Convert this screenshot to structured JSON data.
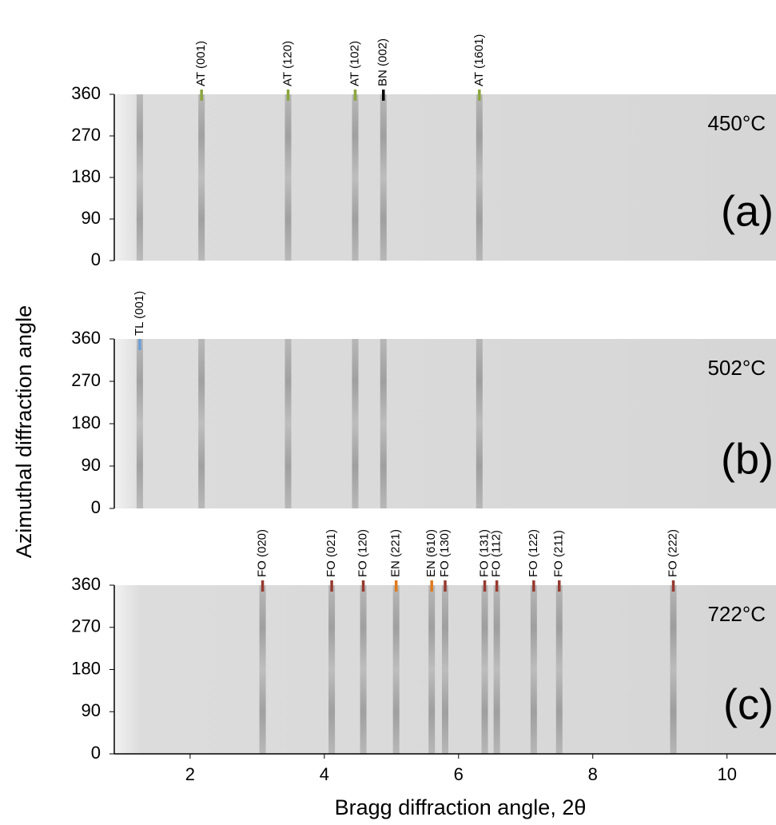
{
  "chart_data": {
    "type": "diffraction",
    "x_label": "Bragg diffraction angle, 2θ",
    "y_label": "Azimuthal diffraction angle",
    "xlim": [
      0.87,
      10.73
    ],
    "xticks": [
      2,
      4,
      6,
      8,
      10
    ],
    "ylim": [
      0,
      360
    ],
    "yticks": [
      0,
      90,
      180,
      270,
      360
    ],
    "panels": [
      {
        "label": "(a)",
        "temperature": "450°C",
        "peaks": [
          {
            "label": "AT (001)",
            "x": 2.17,
            "color": "#8aa63c"
          },
          {
            "label": "AT (120)",
            "x": 3.46,
            "color": "#8aa63c"
          },
          {
            "label": "AT (102)",
            "x": 4.46,
            "color": "#8aa63c"
          },
          {
            "label": "BN (002)",
            "x": 4.88,
            "color": "#000000"
          },
          {
            "label": "AT (1601)",
            "x": 6.31,
            "color": "#8aa63c"
          }
        ]
      },
      {
        "label": "(b)",
        "temperature": "502°C",
        "peaks": [
          {
            "label": "TL (001)",
            "x": 1.25,
            "color": "#6a9fd8"
          }
        ]
      },
      {
        "label": "(c)",
        "temperature": "722°C",
        "peaks": [
          {
            "label": "FO (020)",
            "x": 3.08,
            "color": "#963a30"
          },
          {
            "label": "FO (021)",
            "x": 4.11,
            "color": "#963a30"
          },
          {
            "label": "FO (120)",
            "x": 4.58,
            "color": "#963a30"
          },
          {
            "label": "EN (221)",
            "x": 5.07,
            "color": "#e07a1c"
          },
          {
            "label": "EN (610)",
            "x": 5.6,
            "color": "#e07a1c"
          },
          {
            "label": "FO (130)",
            "x": 5.8,
            "color": "#963a30"
          },
          {
            "label": "FO (131)",
            "x": 6.39,
            "color": "#963a30"
          },
          {
            "label": "FO (112)",
            "x": 6.57,
            "color": "#963a30"
          },
          {
            "label": "FO (122)",
            "x": 7.12,
            "color": "#963a30"
          },
          {
            "label": "FO (211)",
            "x": 7.5,
            "color": "#963a30"
          },
          {
            "label": "FO (222)",
            "x": 9.2,
            "color": "#963a30"
          }
        ]
      }
    ]
  }
}
